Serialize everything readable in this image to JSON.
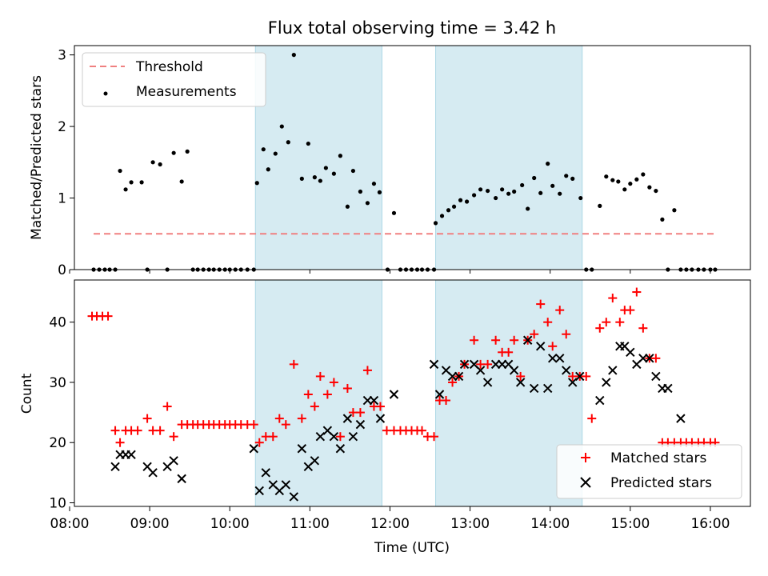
{
  "figure_title": "Flux total observing time = 3.42 h",
  "chart_data": [
    {
      "type": "scatter",
      "panel": "top",
      "title": "Flux total observing time = 3.42 h",
      "xlabel": "",
      "ylabel": "Matched/Predicted stars",
      "xlim": [
        8.06,
        16.5
      ],
      "ylim": [
        0,
        3.13
      ],
      "yticks": [
        0,
        1,
        2,
        3
      ],
      "ytick_labels": [
        "0",
        "1",
        "2",
        "3"
      ],
      "legend": {
        "position": "top-left",
        "entries": [
          "Threshold",
          "Measurements"
        ]
      },
      "threshold": {
        "name": "Threshold",
        "value": 0.5,
        "x_range": [
          8.3,
          16.07
        ],
        "color": "#f08080"
      },
      "shaded_regions": [
        [
          10.32,
          11.9
        ],
        [
          12.57,
          14.4
        ]
      ],
      "series": [
        {
          "name": "Measurements",
          "color": "#000000",
          "x": [
            8.3,
            8.37,
            8.44,
            8.5,
            8.57,
            8.63,
            8.7,
            8.77,
            8.9,
            8.97,
            9.04,
            9.13,
            9.22,
            9.3,
            9.4,
            9.47,
            9.54,
            9.6,
            9.67,
            9.74,
            9.8,
            9.87,
            9.94,
            10.0,
            10.07,
            10.14,
            10.22,
            10.3,
            10.34,
            10.42,
            10.48,
            10.57,
            10.65,
            10.73,
            10.8,
            10.9,
            10.98,
            11.06,
            11.13,
            11.2,
            11.3,
            11.38,
            11.47,
            11.54,
            11.63,
            11.72,
            11.8,
            11.87,
            11.97,
            12.05,
            12.13,
            12.2,
            12.27,
            12.34,
            12.4,
            12.47,
            12.55,
            12.57,
            12.65,
            12.73,
            12.8,
            12.88,
            12.96,
            13.05,
            13.13,
            13.22,
            13.32,
            13.4,
            13.48,
            13.55,
            13.65,
            13.72,
            13.8,
            13.88,
            13.97,
            14.03,
            14.12,
            14.2,
            14.28,
            14.38,
            14.45,
            14.52,
            14.62,
            14.7,
            14.78,
            14.85,
            14.93,
            15.0,
            15.08,
            15.16,
            15.24,
            15.32,
            15.4,
            15.47,
            15.55,
            15.63,
            15.7,
            15.77,
            15.85,
            15.92,
            16.0,
            16.06
          ],
          "y": [
            0,
            0,
            0,
            0,
            0,
            1.38,
            1.12,
            1.22,
            1.22,
            0,
            1.5,
            1.47,
            0,
            1.63,
            1.23,
            1.65,
            0,
            0,
            0,
            0,
            0,
            0,
            0,
            0,
            0,
            0,
            0,
            0,
            1.21,
            1.68,
            1.4,
            1.62,
            2.0,
            1.78,
            3.0,
            1.27,
            1.76,
            1.29,
            1.24,
            1.42,
            1.34,
            1.59,
            0.88,
            1.38,
            1.09,
            0.93,
            1.2,
            1.08,
            0,
            0.79,
            0,
            0,
            0,
            0,
            0,
            0,
            0,
            0.65,
            0.75,
            0.83,
            0.88,
            0.97,
            0.95,
            1.04,
            1.12,
            1.1,
            1.0,
            1.12,
            1.06,
            1.09,
            1.18,
            0.85,
            1.28,
            1.07,
            1.48,
            1.17,
            1.06,
            1.31,
            1.27,
            1.0,
            0,
            0,
            0.89,
            1.3,
            1.25,
            1.23,
            1.12,
            1.2,
            1.26,
            1.33,
            1.15,
            1.1,
            0.7,
            0,
            0.83,
            0,
            0,
            0,
            0,
            0,
            0,
            0
          ]
        }
      ]
    },
    {
      "type": "scatter",
      "panel": "bottom",
      "xlabel": "Time (UTC)",
      "ylabel": "Count",
      "xlim": [
        8.06,
        16.5
      ],
      "ylim": [
        9.4,
        47
      ],
      "yticks": [
        10,
        20,
        30,
        40
      ],
      "ytick_labels": [
        "10",
        "20",
        "30",
        "40"
      ],
      "xticks": [
        8,
        9,
        10,
        11,
        12,
        13,
        14,
        15,
        16
      ],
      "xtick_labels": [
        "08:00",
        "09:00",
        "10:00",
        "11:00",
        "12:00",
        "13:00",
        "14:00",
        "15:00",
        "16:00"
      ],
      "legend": {
        "position": "bottom-right",
        "entries": [
          "Matched stars",
          "Predicted stars"
        ]
      },
      "shaded_regions": [
        [
          10.32,
          11.9
        ],
        [
          12.57,
          14.4
        ]
      ],
      "series": [
        {
          "name": "Matched stars",
          "marker": "+",
          "color": "#ff0000",
          "x": [
            8.28,
            8.34,
            8.41,
            8.48,
            8.57,
            8.63,
            8.7,
            8.77,
            8.85,
            8.97,
            9.04,
            9.13,
            9.22,
            9.3,
            9.4,
            9.47,
            9.54,
            9.6,
            9.67,
            9.74,
            9.8,
            9.87,
            9.94,
            10.0,
            10.07,
            10.14,
            10.22,
            10.3,
            10.37,
            10.45,
            10.54,
            10.62,
            10.7,
            10.8,
            10.9,
            10.98,
            11.06,
            11.13,
            11.22,
            11.3,
            11.38,
            11.47,
            11.54,
            11.63,
            11.72,
            11.8,
            11.88,
            11.96,
            12.05,
            12.13,
            12.2,
            12.27,
            12.34,
            12.4,
            12.47,
            12.55,
            12.62,
            12.7,
            12.78,
            12.86,
            12.93,
            13.05,
            13.13,
            13.22,
            13.32,
            13.4,
            13.48,
            13.55,
            13.63,
            13.72,
            13.8,
            13.88,
            13.97,
            14.03,
            14.12,
            14.2,
            14.28,
            14.37,
            14.45,
            14.52,
            14.62,
            14.7,
            14.78,
            14.87,
            14.93,
            15.0,
            15.08,
            15.16,
            15.24,
            15.32,
            15.4,
            15.47,
            15.55,
            15.63,
            15.7,
            15.77,
            15.85,
            15.92,
            16.0,
            16.06
          ],
          "y": [
            41,
            41,
            41,
            41,
            22,
            20,
            22,
            22,
            22,
            24,
            22,
            22,
            26,
            21,
            23,
            23,
            23,
            23,
            23,
            23,
            23,
            23,
            23,
            23,
            23,
            23,
            23,
            23,
            20,
            21,
            21,
            24,
            23,
            33,
            24,
            28,
            26,
            31,
            28,
            30,
            21,
            29,
            25,
            25,
            32,
            26,
            26,
            22,
            22,
            22,
            22,
            22,
            22,
            22,
            21,
            21,
            27,
            27,
            30,
            31,
            33,
            37,
            33,
            33,
            37,
            35,
            35,
            37,
            31,
            37,
            38,
            43,
            40,
            36,
            42,
            38,
            31,
            31,
            31,
            24,
            39,
            40,
            44,
            40,
            42,
            42,
            45,
            39,
            34,
            34,
            20,
            20,
            20,
            20,
            20,
            20,
            20,
            20,
            20,
            20
          ]
        },
        {
          "name": "Predicted stars",
          "marker": "x",
          "color": "#000000",
          "x": [
            8.57,
            8.63,
            8.7,
            8.77,
            8.97,
            9.04,
            9.22,
            9.3,
            9.4,
            10.3,
            10.37,
            10.45,
            10.54,
            10.62,
            10.7,
            10.8,
            10.9,
            10.98,
            11.06,
            11.13,
            11.22,
            11.3,
            11.38,
            11.47,
            11.54,
            11.63,
            11.72,
            11.8,
            11.88,
            12.05,
            12.55,
            12.62,
            12.7,
            12.78,
            12.86,
            12.93,
            13.05,
            13.13,
            13.22,
            13.32,
            13.4,
            13.48,
            13.55,
            13.63,
            13.72,
            13.8,
            13.88,
            13.97,
            14.03,
            14.12,
            14.2,
            14.28,
            14.37,
            14.62,
            14.7,
            14.78,
            14.87,
            14.93,
            15.0,
            15.08,
            15.16,
            15.24,
            15.32,
            15.4,
            15.47,
            15.63
          ],
          "y": [
            16,
            18,
            18,
            18,
            16,
            15,
            16,
            17,
            14,
            19,
            12,
            15,
            13,
            12,
            13,
            11,
            19,
            16,
            17,
            21,
            22,
            21,
            19,
            24,
            21,
            23,
            27,
            27,
            24,
            28,
            33,
            28,
            32,
            31,
            31,
            33,
            33,
            32,
            30,
            33,
            33,
            33,
            32,
            30,
            37,
            29,
            36,
            29,
            34,
            34,
            32,
            30,
            31,
            27,
            30,
            32,
            36,
            36,
            35,
            33,
            34,
            34,
            31,
            29,
            29,
            24
          ]
        }
      ]
    }
  ]
}
